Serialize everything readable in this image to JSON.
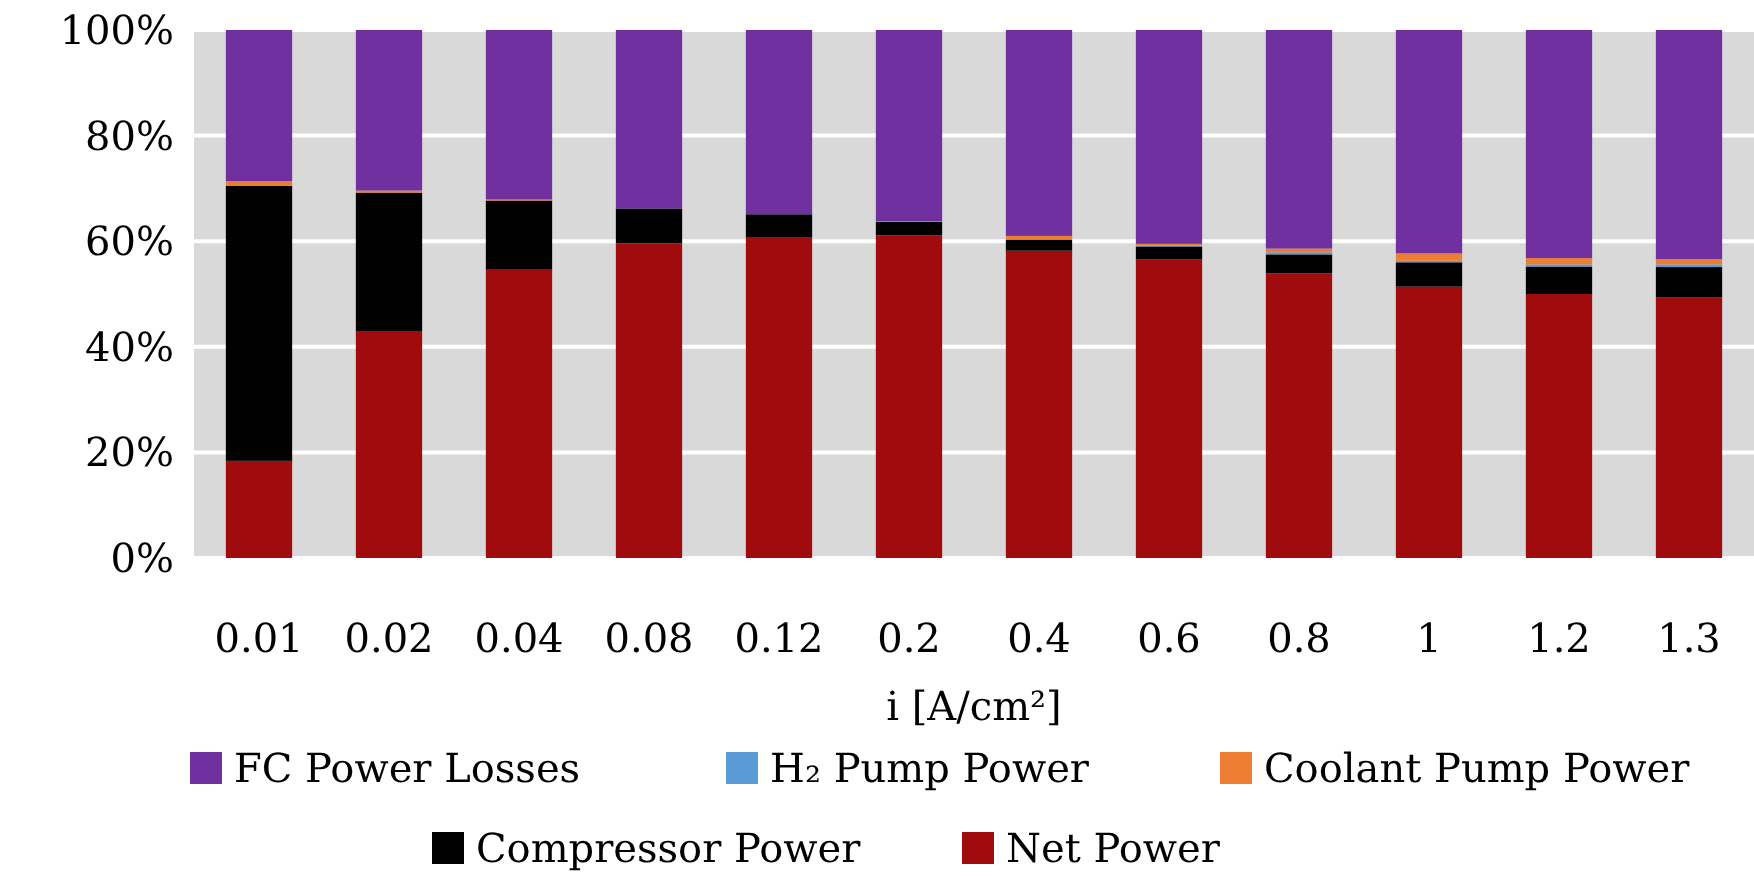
{
  "chart_data": {
    "type": "bar",
    "stacked": true,
    "xlabel": "i [A/cm²]",
    "categories": [
      "0.01",
      "0.02",
      "0.04",
      "0.08",
      "0.12",
      "0.2",
      "0.4",
      "0.6",
      "0.8",
      "1",
      "1.2",
      "1.3"
    ],
    "series": [
      {
        "name": "Net Power",
        "color": "#a00c0e",
        "values": [
          18.4,
          43.0,
          54.6,
          59.6,
          60.8,
          61.1,
          58.2,
          56.6,
          53.9,
          51.4,
          50.0,
          49.4
        ]
      },
      {
        "name": "Compressor Power",
        "color": "#000000",
        "values": [
          52.1,
          26.2,
          13.1,
          6.6,
          4.3,
          2.6,
          2.1,
          2.4,
          3.6,
          4.6,
          5.2,
          5.7
        ]
      },
      {
        "name": "H₂ Pump Power",
        "color": "#5b9bd5",
        "values": [
          0,
          0,
          0,
          0,
          0,
          0,
          0.1,
          0.2,
          0.4,
          0.3,
          0.4,
          0.5
        ]
      },
      {
        "name": "Coolant Pump Power",
        "color": "#ed7d31",
        "values": [
          0.9,
          0.4,
          0.2,
          null,
          null,
          0.1,
          0.6,
          0.3,
          0.7,
          1.4,
          1.2,
          1.0
        ]
      },
      {
        "name": "FC Power Losses",
        "color": "#7030a0",
        "values": [
          28.6,
          30.4,
          32.1,
          33.8,
          34.9,
          36.2,
          39.0,
          40.5,
          41.4,
          42.3,
          43.2,
          43.4
        ]
      }
    ],
    "ylim": [
      0,
      100
    ],
    "yticks": [
      {
        "value": 0,
        "label": "0%"
      },
      {
        "value": 20,
        "label": "20%"
      },
      {
        "value": 40,
        "label": "40%"
      },
      {
        "value": 60,
        "label": "60%"
      },
      {
        "value": 80,
        "label": "80%"
      },
      {
        "value": 100,
        "label": "100%"
      }
    ],
    "grid": "y",
    "legend": "bottom"
  }
}
